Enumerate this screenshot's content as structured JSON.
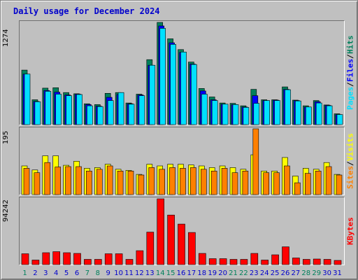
{
  "title": "Daily usage for December 2024",
  "legend": {
    "hits_panel": {
      "pages": "Pages",
      "files": "Files",
      "hits": "Hits",
      "sep": "/"
    },
    "visits_panel": {
      "sites": "Sites",
      "visits": "Visits",
      "sep": "/"
    },
    "kbytes_panel": {
      "kbytes": "KBytes"
    }
  },
  "colors": {
    "background": "#c0c0c0",
    "hits": "#00805c",
    "files": "#0000ff",
    "pages": "#00e0ff",
    "visits": "#ffff00",
    "sites": "#ff8000",
    "kbytes": "#ff0000",
    "weekend_day": "#00805c",
    "weekday_day": "#0000cc",
    "title": "#0000cc"
  },
  "chart_data": [
    {
      "type": "bar",
      "name": "hits-files-pages",
      "ymax_label": "1274",
      "ylim": [
        0,
        1274
      ],
      "x": [
        1,
        2,
        3,
        4,
        5,
        6,
        7,
        8,
        9,
        10,
        11,
        12,
        13,
        14,
        15,
        16,
        17,
        18,
        19,
        20,
        21,
        22,
        23,
        24,
        25,
        26,
        27,
        28,
        29,
        30,
        31
      ],
      "series": [
        {
          "name": "Hits",
          "values": [
            680,
            310,
            455,
            460,
            400,
            385,
            260,
            250,
            390,
            400,
            270,
            380,
            810,
            1274,
            1070,
            935,
            780,
            450,
            345,
            270,
            265,
            235,
            440,
            310,
            310,
            470,
            305,
            235,
            300,
            245,
            135
          ]
        },
        {
          "name": "Files",
          "values": [
            630,
            290,
            425,
            405,
            370,
            380,
            250,
            230,
            340,
            375,
            260,
            370,
            740,
            1230,
            1020,
            900,
            755,
            420,
            310,
            255,
            250,
            220,
            360,
            300,
            305,
            440,
            300,
            220,
            285,
            240,
            125
          ]
        },
        {
          "name": "Pages",
          "values": [
            630,
            285,
            415,
            380,
            360,
            375,
            235,
            225,
            300,
            400,
            255,
            360,
            740,
            1200,
            1000,
            905,
            750,
            380,
            300,
            255,
            250,
            215,
            265,
            300,
            300,
            435,
            295,
            220,
            270,
            235,
            125
          ]
        }
      ]
    },
    {
      "type": "bar",
      "name": "visits-sites",
      "ymax_label": "195",
      "ylim": [
        0,
        195
      ],
      "x": [
        1,
        2,
        3,
        4,
        5,
        6,
        7,
        8,
        9,
        10,
        11,
        12,
        13,
        14,
        15,
        16,
        17,
        18,
        19,
        20,
        21,
        22,
        23,
        24,
        25,
        26,
        27,
        28,
        29,
        30,
        31
      ],
      "series": [
        {
          "name": "Visits",
          "values": [
            85,
            73,
            115,
            115,
            87,
            99,
            78,
            80,
            90,
            75,
            72,
            60,
            90,
            85,
            90,
            90,
            88,
            85,
            80,
            85,
            80,
            75,
            118,
            70,
            70,
            110,
            55,
            78,
            75,
            95,
            60
          ]
        },
        {
          "name": "Sites",
          "values": [
            78,
            65,
            95,
            82,
            83,
            83,
            70,
            75,
            85,
            70,
            70,
            58,
            80,
            75,
            80,
            78,
            80,
            75,
            70,
            78,
            65,
            70,
            195,
            65,
            65,
            85,
            35,
            63,
            70,
            83,
            58
          ]
        }
      ]
    },
    {
      "type": "bar",
      "name": "kbytes",
      "ymax_label": "94242",
      "ylim": [
        0,
        94242
      ],
      "x": [
        1,
        2,
        3,
        4,
        5,
        6,
        7,
        8,
        9,
        10,
        11,
        12,
        13,
        14,
        15,
        16,
        17,
        18,
        19,
        20,
        21,
        22,
        23,
        24,
        25,
        26,
        27,
        28,
        29,
        30,
        31
      ],
      "series": [
        {
          "name": "KBytes",
          "values": [
            15500,
            6500,
            17000,
            18500,
            17000,
            16000,
            7500,
            7500,
            15500,
            15500,
            7500,
            20000,
            46500,
            94242,
            71000,
            58000,
            46000,
            16000,
            8500,
            8500,
            7500,
            7500,
            16000,
            6500,
            14000,
            25500,
            9500,
            7500,
            8000,
            7500,
            6000
          ]
        }
      ]
    }
  ],
  "days": [
    {
      "label": "1",
      "weekend": true
    },
    {
      "label": "2",
      "weekend": false
    },
    {
      "label": "3",
      "weekend": false
    },
    {
      "label": "4",
      "weekend": false
    },
    {
      "label": "5",
      "weekend": false
    },
    {
      "label": "6",
      "weekend": false
    },
    {
      "label": "7",
      "weekend": true
    },
    {
      "label": "8",
      "weekend": true
    },
    {
      "label": "9",
      "weekend": false
    },
    {
      "label": "10",
      "weekend": false
    },
    {
      "label": "11",
      "weekend": false
    },
    {
      "label": "12",
      "weekend": false
    },
    {
      "label": "13",
      "weekend": false
    },
    {
      "label": "14",
      "weekend": true
    },
    {
      "label": "15",
      "weekend": true
    },
    {
      "label": "16",
      "weekend": false
    },
    {
      "label": "17",
      "weekend": false
    },
    {
      "label": "18",
      "weekend": false
    },
    {
      "label": "19",
      "weekend": false
    },
    {
      "label": "20",
      "weekend": false
    },
    {
      "label": "21",
      "weekend": true
    },
    {
      "label": "22",
      "weekend": true
    },
    {
      "label": "23",
      "weekend": false
    },
    {
      "label": "24",
      "weekend": false
    },
    {
      "label": "25",
      "weekend": false
    },
    {
      "label": "26",
      "weekend": false
    },
    {
      "label": "27",
      "weekend": false
    },
    {
      "label": "28",
      "weekend": true
    },
    {
      "label": "29",
      "weekend": true
    },
    {
      "label": "30",
      "weekend": false
    },
    {
      "label": "31",
      "weekend": false
    }
  ]
}
